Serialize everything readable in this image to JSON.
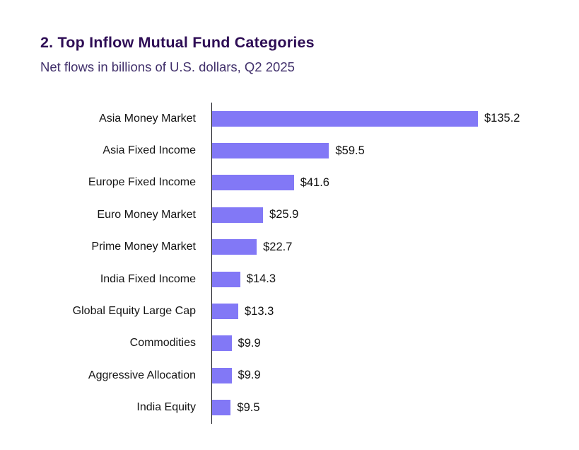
{
  "header": {
    "title": "2. Top Inflow Mutual Fund Categories",
    "subtitle": "Net flows in billions of U.S. dollars, Q2 2025"
  },
  "chart_data": {
    "type": "bar",
    "orientation": "horizontal",
    "title": "2. Top Inflow Mutual Fund Categories",
    "subtitle": "Net flows in billions of U.S. dollars, Q2 2025",
    "xlabel": "",
    "ylabel": "",
    "categories": [
      "Asia Money Market",
      "Asia Fixed Income",
      "Europe Fixed Income",
      "Euro Money Market",
      "Prime Money Market",
      "India Fixed Income",
      "Global Equity Large Cap",
      "Commodities",
      "Aggressive Allocation",
      "India Equity"
    ],
    "values": [
      135.2,
      59.5,
      41.6,
      25.9,
      22.7,
      14.3,
      13.3,
      9.9,
      9.9,
      9.5
    ],
    "value_labels": [
      "$135.2",
      "$59.5",
      "$41.6",
      "$25.9",
      "$22.7",
      "$14.3",
      "$13.3",
      "$9.9",
      "$9.9",
      "$9.5"
    ],
    "xlim": [
      0,
      140
    ],
    "grid": false,
    "legend": false,
    "bar_color": "#8278f6",
    "axis_color": "#16161d"
  },
  "colors": {
    "background": "#ffffff",
    "title_text": "#2e0d55",
    "subtitle_text": "#41306b",
    "label_text": "#141414",
    "value_text": "#121212"
  }
}
